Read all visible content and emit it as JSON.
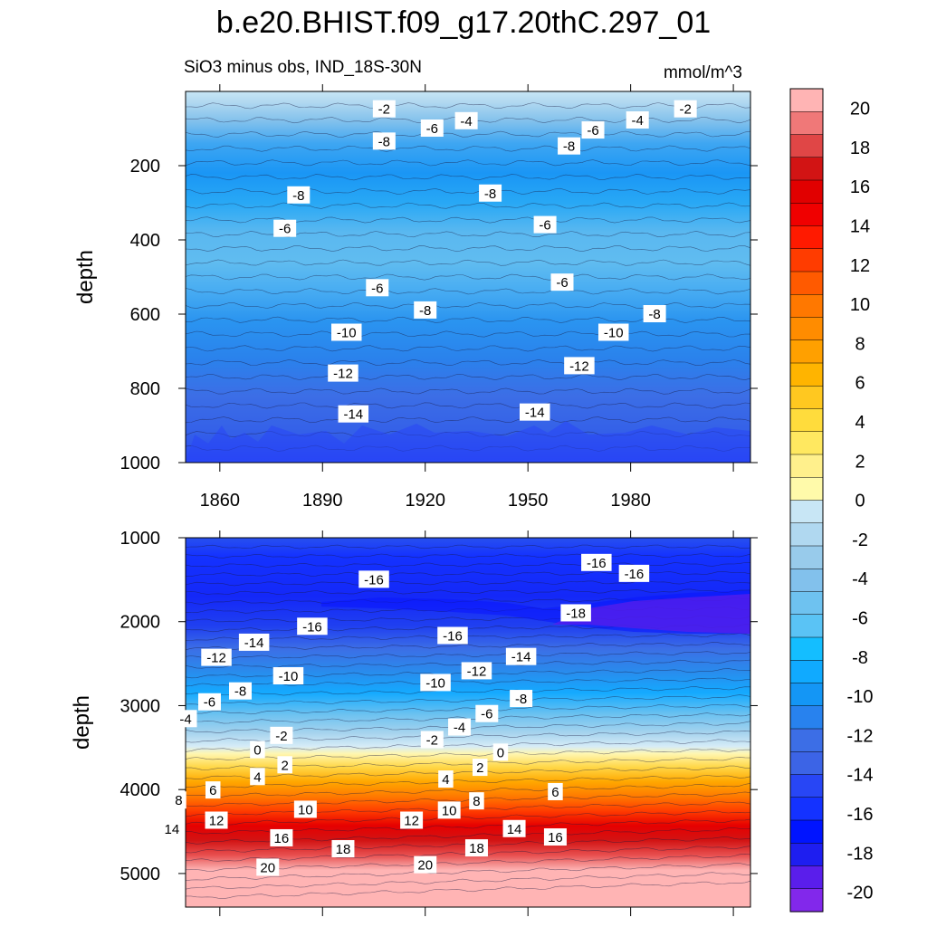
{
  "title": "b.e20.BHIST.f09_g17.20thC.297_01",
  "chart_data": {
    "type": "heatmap",
    "colorbar": {
      "levels": [
        20,
        18,
        16,
        14,
        12,
        10,
        8,
        6,
        4,
        2,
        0,
        -2,
        -4,
        -6,
        -8,
        -10,
        -12,
        -14,
        -16,
        -18,
        -20
      ],
      "label_strings": [
        "20",
        "18",
        "16",
        "14",
        "12",
        "10",
        "8",
        "6",
        "4",
        "2",
        "0",
        "-2",
        "-4",
        "-6",
        "-8",
        "-10",
        "-12",
        "-14",
        "-16",
        "-18",
        "-20"
      ],
      "colors": [
        "#ffb4b4",
        "#f07878",
        "#e04646",
        "#d21414",
        "#e10000",
        "#f00000",
        "#ff1a00",
        "#ff3c00",
        "#ff5a00",
        "#ff7800",
        "#ff8c00",
        "#ffa000",
        "#ffb400",
        "#ffc820",
        "#ffdc3c",
        "#ffe860",
        "#fff08c",
        "#fffaaa",
        "#c8e6f5",
        "#b0d8f0",
        "#98cbeb",
        "#82c1ec",
        "#6ec2f0",
        "#5ac3f5",
        "#14beff",
        "#10aaff",
        "#1496f5",
        "#2882ee",
        "#3c6ee6",
        "#3c64e6",
        "#2846f5",
        "#1432ff",
        "#0014ff",
        "#1e1ef0",
        "#5a1eeb",
        "#8228eb"
      ]
    },
    "panels": [
      {
        "subtitle": "SiO3 minus obs, IND_18S-30N",
        "units": "mmol/m^3",
        "ylabel": "depth",
        "xlim": [
          1850,
          2015
        ],
        "ylim": [
          0,
          1000
        ],
        "x_ticks": [
          "1860",
          "1890",
          "1920",
          "1950",
          "1980"
        ],
        "y_ticks": [
          "200",
          "400",
          "600",
          "800",
          "1000"
        ],
        "contour_labels": [
          {
            "text": "-2",
            "year": 1908,
            "depth": 48
          },
          {
            "text": "-4",
            "year": 1932,
            "depth": 80
          },
          {
            "text": "-6",
            "year": 1922,
            "depth": 100
          },
          {
            "text": "-8",
            "year": 1908,
            "depth": 135
          },
          {
            "text": "-8",
            "year": 1962,
            "depth": 148
          },
          {
            "text": "-6",
            "year": 1969,
            "depth": 105
          },
          {
            "text": "-4",
            "year": 1982,
            "depth": 78
          },
          {
            "text": "-2",
            "year": 1996,
            "depth": 48
          },
          {
            "text": "-8",
            "year": 1883,
            "depth": 280
          },
          {
            "text": "-8",
            "year": 1939,
            "depth": 275
          },
          {
            "text": "-6",
            "year": 1879,
            "depth": 370
          },
          {
            "text": "-6",
            "year": 1955,
            "depth": 360
          },
          {
            "text": "-6",
            "year": 1906,
            "depth": 530
          },
          {
            "text": "-6",
            "year": 1960,
            "depth": 515
          },
          {
            "text": "-8",
            "year": 1920,
            "depth": 590
          },
          {
            "text": "-8",
            "year": 1987,
            "depth": 600
          },
          {
            "text": "-10",
            "year": 1897,
            "depth": 650
          },
          {
            "text": "-10",
            "year": 1975,
            "depth": 650
          },
          {
            "text": "-12",
            "year": 1896,
            "depth": 760
          },
          {
            "text": "-12",
            "year": 1965,
            "depth": 740
          },
          {
            "text": "-14",
            "year": 1899,
            "depth": 870
          },
          {
            "text": "-14",
            "year": 1952,
            "depth": 865
          }
        ]
      },
      {
        "ylabel": "depth",
        "xlim": [
          1850,
          2015
        ],
        "ylim": [
          1000,
          5400
        ],
        "y_ticks": [
          "1000",
          "2000",
          "3000",
          "4000",
          "5000"
        ],
        "contour_labels": [
          {
            "text": "-16",
            "year": 1905,
            "depth": 1500
          },
          {
            "text": "-16",
            "year": 1970,
            "depth": 1300
          },
          {
            "text": "-16",
            "year": 1981,
            "depth": 1430
          },
          {
            "text": "-18",
            "year": 1964,
            "depth": 1900
          },
          {
            "text": "-16",
            "year": 1887,
            "depth": 2060
          },
          {
            "text": "-16",
            "year": 1928,
            "depth": 2170
          },
          {
            "text": "-14",
            "year": 1870,
            "depth": 2250
          },
          {
            "text": "-14",
            "year": 1948,
            "depth": 2420
          },
          {
            "text": "-12",
            "year": 1859,
            "depth": 2430
          },
          {
            "text": "-12",
            "year": 1935,
            "depth": 2590
          },
          {
            "text": "-10",
            "year": 1880,
            "depth": 2650
          },
          {
            "text": "-10",
            "year": 1923,
            "depth": 2730
          },
          {
            "text": "-8",
            "year": 1866,
            "depth": 2830
          },
          {
            "text": "-8",
            "year": 1948,
            "depth": 2920
          },
          {
            "text": "-6",
            "year": 1857,
            "depth": 2960
          },
          {
            "text": "-6",
            "year": 1938,
            "depth": 3100
          },
          {
            "text": "-4",
            "year": 1850,
            "depth": 3160
          },
          {
            "text": "-4",
            "year": 1930,
            "depth": 3260
          },
          {
            "text": "-2",
            "year": 1878,
            "depth": 3360
          },
          {
            "text": "-2",
            "year": 1922,
            "depth": 3410
          },
          {
            "text": "0",
            "year": 1871,
            "depth": 3530
          },
          {
            "text": "0",
            "year": 1942,
            "depth": 3560
          },
          {
            "text": "2",
            "year": 1879,
            "depth": 3710
          },
          {
            "text": "2",
            "year": 1936,
            "depth": 3740
          },
          {
            "text": "4",
            "year": 1871,
            "depth": 3850
          },
          {
            "text": "4",
            "year": 1926,
            "depth": 3880
          },
          {
            "text": "6",
            "year": 1858,
            "depth": 4010
          },
          {
            "text": "6",
            "year": 1958,
            "depth": 4030
          },
          {
            "text": "8",
            "year": 1848,
            "depth": 4130
          },
          {
            "text": "8",
            "year": 1935,
            "depth": 4140
          },
          {
            "text": "10",
            "year": 1885,
            "depth": 4240
          },
          {
            "text": "10",
            "year": 1927,
            "depth": 4250
          },
          {
            "text": "12",
            "year": 1859,
            "depth": 4370
          },
          {
            "text": "12",
            "year": 1916,
            "depth": 4370
          },
          {
            "text": "14",
            "year": 1846,
            "depth": 4470
          },
          {
            "text": "14",
            "year": 1946,
            "depth": 4470
          },
          {
            "text": "16",
            "year": 1878,
            "depth": 4580
          },
          {
            "text": "16",
            "year": 1958,
            "depth": 4570
          },
          {
            "text": "18",
            "year": 1896,
            "depth": 4710
          },
          {
            "text": "18",
            "year": 1935,
            "depth": 4700
          },
          {
            "text": "20",
            "year": 1874,
            "depth": 4930
          },
          {
            "text": "20",
            "year": 1920,
            "depth": 4900
          }
        ]
      }
    ]
  }
}
